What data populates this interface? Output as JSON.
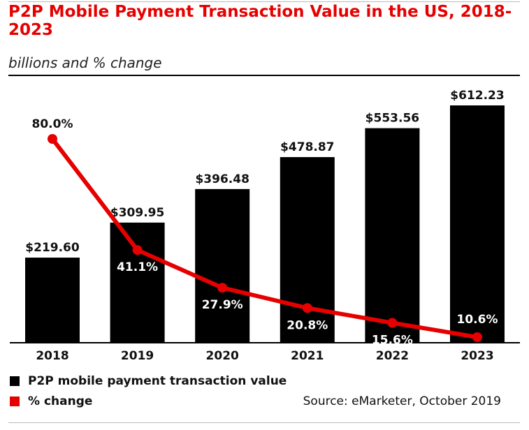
{
  "header": {
    "title": "P2P Mobile Payment Transaction Value in the US, 2018-2023",
    "subtitle": "billions and % change"
  },
  "legend": {
    "value_label": "P2P mobile payment transaction value",
    "change_label": "% change"
  },
  "source": "Source: eMarketer, October 2019",
  "colors": {
    "bar": "#000000",
    "line": "#e60000",
    "title": "#e60000"
  },
  "chart_data": {
    "type": "bar",
    "title": "P2P Mobile Payment Transaction Value in the US, 2018-2023",
    "subtitle": "billions and % change",
    "categories": [
      "2018",
      "2019",
      "2020",
      "2021",
      "2022",
      "2023"
    ],
    "series": [
      {
        "name": "P2P mobile payment transaction value",
        "type": "bar",
        "values": [
          219.6,
          309.95,
          396.48,
          478.87,
          553.56,
          612.23
        ],
        "labels": [
          "$219.60",
          "$309.95",
          "$396.48",
          "$478.87",
          "$553.56",
          "$612.23"
        ]
      },
      {
        "name": "% change",
        "type": "line",
        "values": [
          80.0,
          41.1,
          27.9,
          20.8,
          15.6,
          10.6
        ],
        "labels": [
          "80.0%",
          "41.1%",
          "27.9%",
          "20.8%",
          "15.6%",
          "10.6%"
        ]
      }
    ],
    "legend": "bottom-left",
    "grid": false
  }
}
